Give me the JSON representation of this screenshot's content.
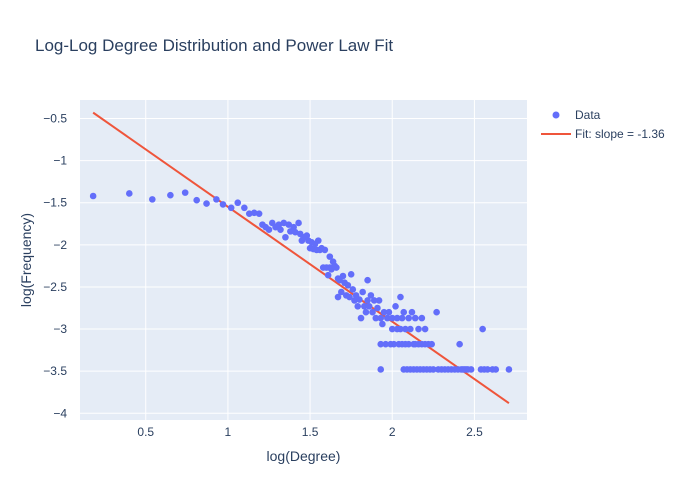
{
  "chart_data": {
    "type": "scatter",
    "title": "Log-Log Degree Distribution and Power Law Fit",
    "xlabel": "log(Degree)",
    "ylabel": "log(Frequency)",
    "xlim": [
      0.1,
      2.82
    ],
    "ylim": [
      -4.08,
      -0.28
    ],
    "x_ticks": [
      0.5,
      1,
      1.5,
      2,
      2.5
    ],
    "x_tick_labels": [
      "0.5",
      "1",
      "1.5",
      "2",
      "2.5"
    ],
    "y_ticks": [
      -0.5,
      -1,
      -1.5,
      -2,
      -2.5,
      -3,
      -3.5,
      -4
    ],
    "y_tick_labels": [
      "−0.5",
      "−1",
      "−1.5",
      "−2",
      "−2.5",
      "−3",
      "−3.5",
      "−4"
    ],
    "grid": true,
    "legend_position": "top-right",
    "colors": {
      "data": "#636efa",
      "fit": "#ef553b",
      "plot_bg": "#e5ecf6",
      "grid": "#ffffff",
      "text": "#2a3f5f"
    },
    "series": [
      {
        "name": "Data",
        "mode": "markers",
        "points": [
          [
            0.18,
            -1.42
          ],
          [
            0.4,
            -1.39
          ],
          [
            0.54,
            -1.46
          ],
          [
            0.65,
            -1.41
          ],
          [
            0.74,
            -1.38
          ],
          [
            0.81,
            -1.47
          ],
          [
            0.87,
            -1.51
          ],
          [
            0.93,
            -1.46
          ],
          [
            0.97,
            -1.52
          ],
          [
            1.02,
            -1.56
          ],
          [
            1.06,
            -1.5
          ],
          [
            1.1,
            -1.56
          ],
          [
            1.13,
            -1.63
          ],
          [
            1.16,
            -1.62
          ],
          [
            1.19,
            -1.63
          ],
          [
            1.21,
            -1.76
          ],
          [
            1.23,
            -1.79
          ],
          [
            1.25,
            -1.82
          ],
          [
            1.27,
            -1.74
          ],
          [
            1.29,
            -1.79
          ],
          [
            1.31,
            -1.76
          ],
          [
            1.32,
            -1.82
          ],
          [
            1.34,
            -1.74
          ],
          [
            1.35,
            -1.91
          ],
          [
            1.37,
            -1.76
          ],
          [
            1.38,
            -1.84
          ],
          [
            1.4,
            -1.79
          ],
          [
            1.41,
            -1.85
          ],
          [
            1.43,
            -1.74
          ],
          [
            1.44,
            -1.87
          ],
          [
            1.45,
            -1.95
          ],
          [
            1.46,
            -1.91
          ],
          [
            1.48,
            -1.89
          ],
          [
            1.49,
            -1.95
          ],
          [
            1.5,
            -2.04
          ],
          [
            1.51,
            -1.97
          ],
          [
            1.52,
            -2.05
          ],
          [
            1.53,
            -1.99
          ],
          [
            1.54,
            -2.06
          ],
          [
            1.55,
            -1.95
          ],
          [
            1.56,
            -2.06
          ],
          [
            1.57,
            -2.04
          ],
          [
            1.58,
            -2.27
          ],
          [
            1.59,
            -2.06
          ],
          [
            1.6,
            -2.27
          ],
          [
            1.61,
            -2.36
          ],
          [
            1.62,
            -2.27
          ],
          [
            1.62,
            -2.14
          ],
          [
            1.63,
            -2.29
          ],
          [
            1.64,
            -2.2
          ],
          [
            1.65,
            -2.25
          ],
          [
            1.66,
            -2.27
          ],
          [
            1.67,
            -2.4
          ],
          [
            1.67,
            -2.62
          ],
          [
            1.68,
            -2.42
          ],
          [
            1.69,
            -2.56
          ],
          [
            1.7,
            -2.37
          ],
          [
            1.71,
            -2.45
          ],
          [
            1.72,
            -2.6
          ],
          [
            1.73,
            -2.48
          ],
          [
            1.74,
            -2.62
          ],
          [
            1.75,
            -2.35
          ],
          [
            1.76,
            -2.53
          ],
          [
            1.77,
            -2.66
          ],
          [
            1.78,
            -2.6
          ],
          [
            1.79,
            -2.73
          ],
          [
            1.8,
            -2.65
          ],
          [
            1.81,
            -2.87
          ],
          [
            1.82,
            -2.56
          ],
          [
            1.83,
            -2.73
          ],
          [
            1.84,
            -2.8
          ],
          [
            1.85,
            -2.42
          ],
          [
            1.85,
            -2.66
          ],
          [
            1.86,
            -2.73
          ],
          [
            1.87,
            -2.6
          ],
          [
            1.88,
            -2.8
          ],
          [
            1.89,
            -2.66
          ],
          [
            1.9,
            -2.87
          ],
          [
            1.91,
            -2.75
          ],
          [
            1.92,
            -2.66
          ],
          [
            1.93,
            -3.18
          ],
          [
            1.93,
            -2.87
          ],
          [
            1.93,
            -3.48
          ],
          [
            1.94,
            -2.94
          ],
          [
            1.95,
            -2.8
          ],
          [
            1.96,
            -3.18
          ],
          [
            1.97,
            -2.87
          ],
          [
            1.98,
            -2.8
          ],
          [
            1.99,
            -3.18
          ],
          [
            2.0,
            -3.0
          ],
          [
            2.0,
            -2.87
          ],
          [
            2.01,
            -3.18
          ],
          [
            2.02,
            -2.73
          ],
          [
            2.03,
            -2.87
          ],
          [
            2.03,
            -3.0
          ],
          [
            2.04,
            -3.18
          ],
          [
            2.05,
            -2.62
          ],
          [
            2.05,
            -3.0
          ],
          [
            2.06,
            -3.18
          ],
          [
            2.06,
            -2.87
          ],
          [
            2.07,
            -3.48
          ],
          [
            2.07,
            -2.8
          ],
          [
            2.08,
            -3.18
          ],
          [
            2.08,
            -3.0
          ],
          [
            2.09,
            -3.48
          ],
          [
            2.1,
            -3.18
          ],
          [
            2.1,
            -2.87
          ],
          [
            2.11,
            -3.0
          ],
          [
            2.11,
            -3.48
          ],
          [
            2.12,
            -2.8
          ],
          [
            2.13,
            -3.18
          ],
          [
            2.13,
            -3.48
          ],
          [
            2.14,
            -2.87
          ],
          [
            2.14,
            -3.18
          ],
          [
            2.15,
            -3.48
          ],
          [
            2.16,
            -3.18
          ],
          [
            2.16,
            -3.0
          ],
          [
            2.17,
            -3.48
          ],
          [
            2.18,
            -2.87
          ],
          [
            2.18,
            -3.18
          ],
          [
            2.19,
            -3.48
          ],
          [
            2.2,
            -3.18
          ],
          [
            2.2,
            -3.0
          ],
          [
            2.21,
            -3.48
          ],
          [
            2.22,
            -3.18
          ],
          [
            2.23,
            -3.48
          ],
          [
            2.24,
            -3.18
          ],
          [
            2.25,
            -3.48
          ],
          [
            2.27,
            -2.8
          ],
          [
            2.28,
            -3.48
          ],
          [
            2.3,
            -3.48
          ],
          [
            2.32,
            -3.48
          ],
          [
            2.34,
            -3.48
          ],
          [
            2.36,
            -3.48
          ],
          [
            2.38,
            -3.48
          ],
          [
            2.4,
            -3.48
          ],
          [
            2.41,
            -3.18
          ],
          [
            2.42,
            -3.48
          ],
          [
            2.43,
            -3.48
          ],
          [
            2.44,
            -3.48
          ],
          [
            2.45,
            -3.48
          ],
          [
            2.46,
            -3.48
          ],
          [
            2.48,
            -3.48
          ],
          [
            2.54,
            -3.48
          ],
          [
            2.55,
            -3.0
          ],
          [
            2.56,
            -3.48
          ],
          [
            2.58,
            -3.48
          ],
          [
            2.61,
            -3.48
          ],
          [
            2.63,
            -3.48
          ],
          [
            2.71,
            -3.48
          ]
        ]
      },
      {
        "name": "Fit: slope = -1.36",
        "mode": "lines",
        "points": [
          [
            0.18,
            -0.43
          ],
          [
            2.71,
            -3.88
          ]
        ]
      }
    ]
  }
}
